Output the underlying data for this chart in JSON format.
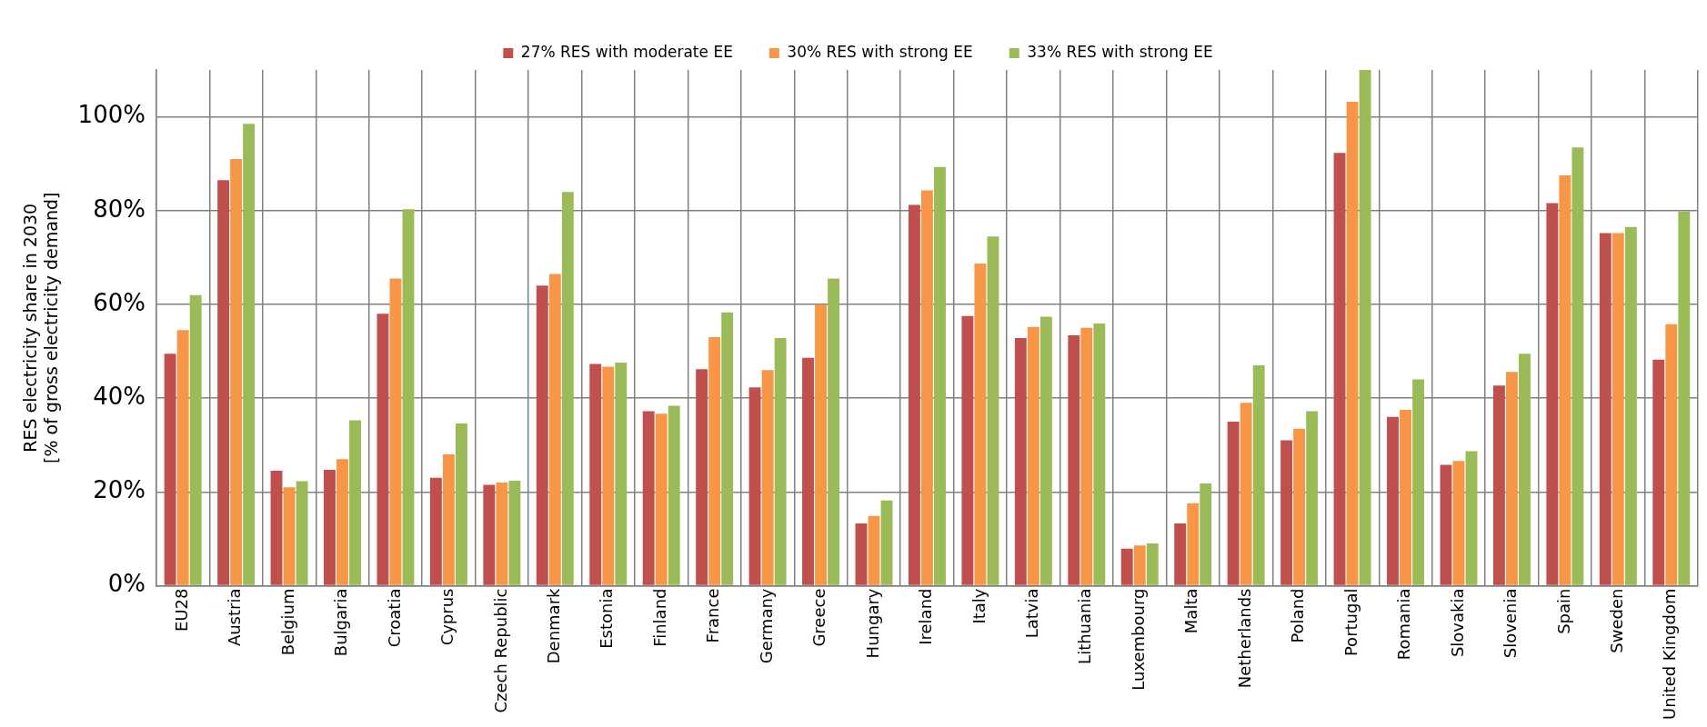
{
  "chart_data": {
    "type": "bar",
    "ylabel": "RES electricity share in 2030\n[% of gross electricity demand]",
    "categories": [
      "EU28",
      "Austria",
      "Belgium",
      "Bulgaria",
      "Croatia",
      "Cyprus",
      "Czech Republic",
      "Denmark",
      "Estonia",
      "Finland",
      "France",
      "Germany",
      "Greece",
      "Hungary",
      "Ireland",
      "Italy",
      "Latvia",
      "Lithuania",
      "Luxembourg",
      "Malta",
      "Netherlands",
      "Poland",
      "Portugal",
      "Romania",
      "Slovakia",
      "Slovenia",
      "Spain",
      "Sweden",
      "United Kingdom"
    ],
    "series": [
      {
        "name": "27% RES with moderate EE",
        "color": "#c0504d",
        "values": [
          49.5,
          86.5,
          24.5,
          24.7,
          58,
          23,
          21.5,
          64,
          47.3,
          37.2,
          46.2,
          42.3,
          48.6,
          13.3,
          81.2,
          57.5,
          52.8,
          53.4,
          7.9,
          13.3,
          35,
          31,
          92.3,
          36,
          25.8,
          42.7,
          81.6,
          75.2,
          48.2
        ]
      },
      {
        "name": "30% RES with strong EE",
        "color": "#f79646",
        "values": [
          54.5,
          91,
          21,
          27,
          65.5,
          28,
          22,
          66.5,
          46.7,
          36.7,
          53,
          46,
          60,
          14.9,
          84.3,
          68.7,
          55.2,
          55,
          8.6,
          17.6,
          39,
          33.5,
          103.2,
          37.5,
          26.6,
          45.6,
          87.5,
          75.2,
          55.8
        ]
      },
      {
        "name": "33% RES with strong EE",
        "color": "#9bbb59",
        "values": [
          62,
          98.5,
          22.3,
          35.3,
          80.3,
          34.6,
          22.4,
          84,
          47.6,
          38.4,
          58.3,
          52.8,
          65.5,
          18.2,
          89.3,
          74.5,
          57.4,
          55.9,
          9,
          21.8,
          47,
          37.2,
          110,
          44,
          28.7,
          49.5,
          93.5,
          76.5,
          79.8
        ]
      }
    ],
    "ylim": [
      0,
      110
    ],
    "yticks": [
      {
        "value": 0,
        "label": "0%"
      },
      {
        "value": 20,
        "label": "20%"
      },
      {
        "value": 40,
        "label": "40%"
      },
      {
        "value": 60,
        "label": "60%"
      },
      {
        "value": 80,
        "label": "80%"
      },
      {
        "value": 100,
        "label": "100%"
      }
    ],
    "grid": true,
    "legend": "top"
  }
}
